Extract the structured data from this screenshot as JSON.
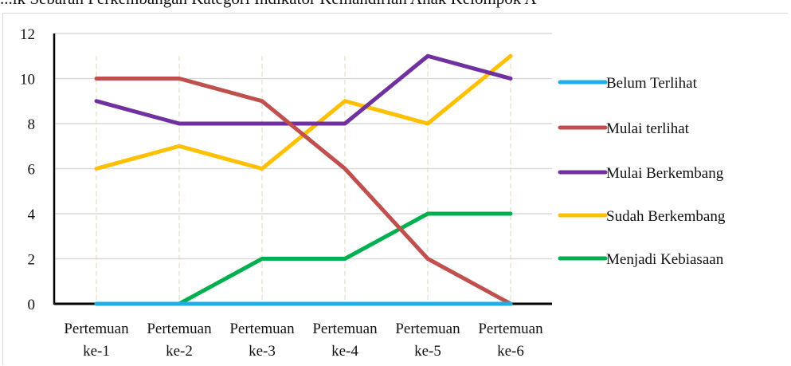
{
  "caption": "...ik Sebaran Perkembangan Kategori Indikator Kemandirian Anak Kelompok A",
  "chart_data": {
    "type": "line",
    "categories": [
      [
        "Pertemuan",
        "ke-1"
      ],
      [
        "Pertemuan",
        "ke-2"
      ],
      [
        "Pertemuan",
        "ke-3"
      ],
      [
        "Pertemuan",
        "ke-4"
      ],
      [
        "Pertemuan",
        "ke-5"
      ],
      [
        "Pertemuan",
        "ke-6"
      ]
    ],
    "ylim": [
      0,
      12
    ],
    "yticks": [
      "0",
      "2",
      "4",
      "6",
      "8",
      "10",
      "12"
    ],
    "grid": true,
    "legend_position": "right",
    "series": [
      {
        "name": "Belum Terlihat",
        "color": "#1cb0e6",
        "values": [
          0,
          0,
          0,
          0,
          0,
          0
        ]
      },
      {
        "name": "Mulai terlihat",
        "color": "#c0504d",
        "values": [
          10,
          10,
          9,
          6,
          2,
          0
        ]
      },
      {
        "name": "Mulai Berkembang",
        "color": "#7030a0",
        "values": [
          9,
          8,
          8,
          8,
          11,
          10
        ]
      },
      {
        "name": "Sudah Berkembang",
        "color": "#ffc000",
        "values": [
          6,
          7,
          6,
          9,
          8,
          11
        ]
      },
      {
        "name": "Menjadi Kebiasaan",
        "color": "#00b050",
        "values": [
          0,
          0,
          2,
          2,
          4,
          4
        ]
      }
    ]
  }
}
